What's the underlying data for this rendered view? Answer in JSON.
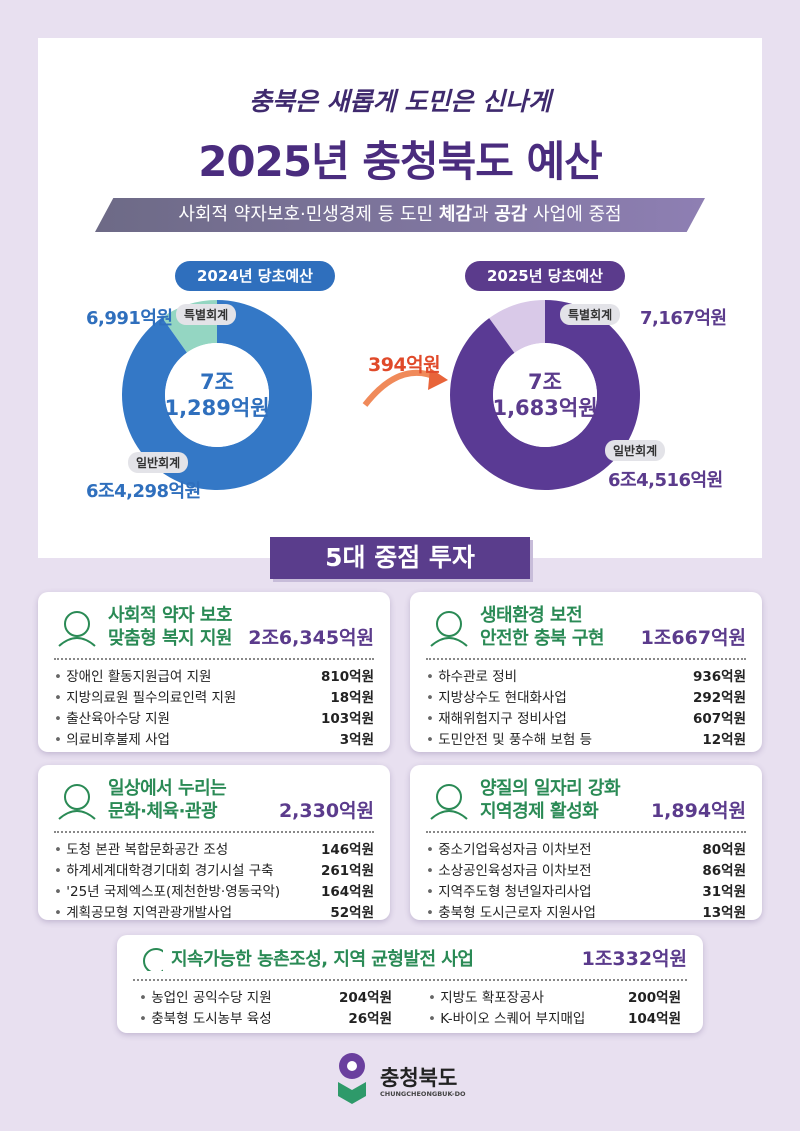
{
  "header": {
    "slogan": "충북은 새롭게 도민은 신나게",
    "title": "2025년 충청북도 예산",
    "subtitle": [
      {
        "text": "사회적 약자보호·민생경제 등 도민 ",
        "bold": false
      },
      {
        "text": "체감",
        "bold": true
      },
      {
        "text": "과 ",
        "bold": false
      },
      {
        "text": "공감",
        "bold": true
      },
      {
        "text": " 사업에 중점",
        "bold": false
      }
    ]
  },
  "budgets": [
    {
      "label": "2024년 당초예산",
      "total": [
        "7조",
        "1,289억원"
      ],
      "color": "#2f6fbd",
      "segments": [
        {
          "name": "특별회계",
          "value": 6991,
          "value_label": "6,991억원",
          "color": "#94d6c2"
        },
        {
          "name": "일반회계",
          "value": 64298,
          "value_label": "6조4,298억원",
          "color": "#3478c6"
        }
      ]
    },
    {
      "label": "2025년 당초예산",
      "total": [
        "7조",
        "1,683억원"
      ],
      "color": "#5b3b8c",
      "segments": [
        {
          "name": "특별회계",
          "value": 7167,
          "value_label": "7,167억원",
          "color": "#d9c9e8"
        },
        {
          "name": "일반회계",
          "value": 64516,
          "value_label": "6조4,516억원",
          "color": "#5a3a94"
        }
      ]
    }
  ],
  "increase": "394억원",
  "section_title": "5대 중점 투자",
  "investments": [
    {
      "title": [
        "사회적 약자 보호",
        "맞춤형 복지 지원"
      ],
      "amount": "2조6,345억원",
      "items": [
        {
          "name": "장애인 활동지원급여 지원",
          "amount": "810억원"
        },
        {
          "name": "지방의료원 필수의료인력 지원",
          "amount": "18억원"
        },
        {
          "name": "출산육아수당 지원",
          "amount": "103억원"
        },
        {
          "name": "의료비후불제 사업",
          "amount": "3억원"
        }
      ]
    },
    {
      "title": [
        "생태환경 보전",
        "안전한 충북 구현"
      ],
      "amount": "1조667억원",
      "items": [
        {
          "name": "하수관로 정비",
          "amount": "936억원"
        },
        {
          "name": "지방상수도 현대화사업",
          "amount": "292억원"
        },
        {
          "name": "재해위험지구 정비사업",
          "amount": "607억원"
        },
        {
          "name": "도민안전 및 풍수해 보험 등",
          "amount": "12억원"
        }
      ]
    },
    {
      "title": [
        "일상에서 누리는",
        "문화·체육·관광"
      ],
      "amount": "2,330억원",
      "items": [
        {
          "name": "도청 본관 복합문화공간 조성",
          "amount": "146억원"
        },
        {
          "name": "하계세계대학경기대회 경기시설 구축",
          "amount": "261억원"
        },
        {
          "name": "'25년 국제엑스포(제천한방·영동국악)",
          "amount": "164억원"
        },
        {
          "name": "계획공모형 지역관광개발사업",
          "amount": "52억원"
        }
      ]
    },
    {
      "title": [
        "양질의 일자리 강화",
        "지역경제 활성화"
      ],
      "amount": "1,894억원",
      "items": [
        {
          "name": "중소기업육성자금 이차보전",
          "amount": "80억원"
        },
        {
          "name": "소상공인육성자금 이차보전",
          "amount": "86억원"
        },
        {
          "name": "지역주도형 청년일자리사업",
          "amount": "31억원"
        },
        {
          "name": "충북형 도시근로자 지원사업",
          "amount": "13억원"
        }
      ]
    },
    {
      "title": [
        "지속가능한 농촌조성, 지역 균형발전 사업"
      ],
      "amount": "1조332억원",
      "items": [
        {
          "name": "농업인 공익수당 지원",
          "amount": "204억원"
        },
        {
          "name": "충북형 도시농부 육성",
          "amount": "26억원"
        },
        {
          "name": "지방도 확포장공사",
          "amount": "200억원"
        },
        {
          "name": "K-바이오 스퀘어 부지매입",
          "amount": "104억원"
        }
      ]
    }
  ],
  "footer": {
    "logo": "충청북도",
    "logo_en": "CHUNGCHEONGBUK-DO"
  }
}
